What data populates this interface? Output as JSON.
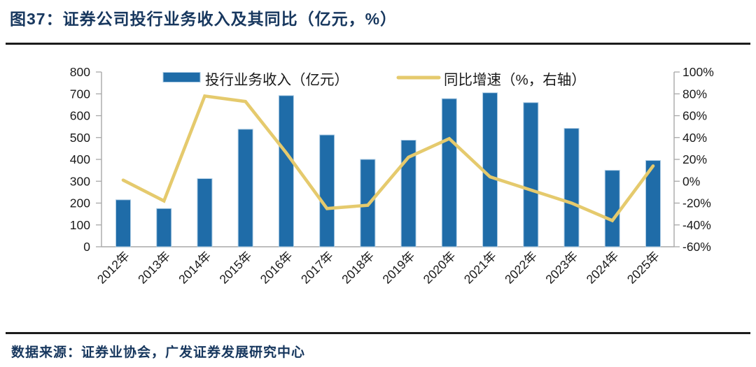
{
  "page": {
    "title": "图37：证券公司投行业务收入及其同比（亿元，%）",
    "source": "数据来源：证券业协会，广发证券发展研究中心"
  },
  "chart_data": {
    "type": "bar+line combo",
    "title": "证券公司投行业务收入及其同比",
    "categories": [
      "2012年",
      "2013年",
      "2014年",
      "2015年",
      "2016年",
      "2017年",
      "2018年",
      "2019年",
      "2020年",
      "2021年",
      "2022年",
      "2023年",
      "2024年",
      "2025年"
    ],
    "series": [
      {
        "name": "投行业务收入（亿元）",
        "type": "bar",
        "axis": "left",
        "color": "#1F6CA8",
        "edge_color": "#AECCE4",
        "values": [
          215,
          175,
          312,
          538,
          692,
          512,
          400,
          488,
          678,
          705,
          660,
          542,
          350,
          395
        ]
      },
      {
        "name": "同比增速（%，右轴）",
        "type": "line",
        "axis": "right",
        "color": "#E5CA6D",
        "values": [
          1,
          -18,
          78,
          73,
          26,
          -25,
          -22,
          22,
          39,
          4,
          -8,
          -20,
          -36,
          14
        ]
      }
    ],
    "left_axis": {
      "min": 0,
      "max": 800,
      "step": 100,
      "ticks": [
        "800",
        "700",
        "600",
        "500",
        "400",
        "300",
        "200",
        "100",
        "0"
      ]
    },
    "right_axis": {
      "min": -60,
      "max": 100,
      "step": 20,
      "ticks": [
        "100%",
        "80%",
        "60%",
        "40%",
        "20%",
        "0%",
        "-20%",
        "-40%",
        "-60%"
      ]
    },
    "legend_position": "top-inside",
    "grid": false,
    "axis_color": "#A8A8A8",
    "label_color": "#1a1a1a"
  }
}
